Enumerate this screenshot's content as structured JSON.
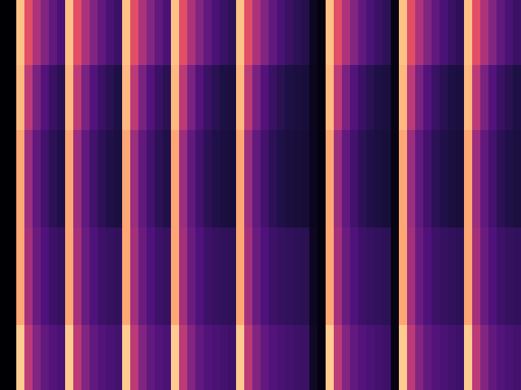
{
  "chart_data": {
    "type": "heatmap",
    "xlim": [
      0,
      64
    ],
    "ylim": [
      0,
      12
    ],
    "color_range": [
      0,
      1
    ],
    "tick_labels": false,
    "cells": [
      [
        0,
        0,
        0.88,
        0.62,
        0.48,
        0.38,
        0.3,
        0.24,
        0.88,
        0.62,
        0.48,
        0.38,
        0.3,
        0.24,
        0.2,
        0.88,
        0.62,
        0.48,
        0.38,
        0.3,
        0.24,
        0.88,
        0.62,
        0.48,
        0.38,
        0.3,
        0.24,
        0.2,
        0.17,
        0.88,
        0.62,
        0.48,
        0.38,
        0.3,
        0.24,
        0.2,
        0.17,
        0.15,
        0.06,
        0.02,
        0.88,
        0.62,
        0.48,
        0.38,
        0.3,
        0.24,
        0.2,
        0.17,
        0.03,
        0.88,
        0.62,
        0.48,
        0.38,
        0.3,
        0.24,
        0.2,
        0.17,
        0.88,
        0.62,
        0.48,
        0.38,
        0.3,
        0.24,
        0.2
      ],
      [
        0,
        0,
        0.88,
        0.62,
        0.48,
        0.38,
        0.3,
        0.24,
        0.88,
        0.62,
        0.48,
        0.38,
        0.3,
        0.24,
        0.2,
        0.88,
        0.62,
        0.48,
        0.38,
        0.3,
        0.24,
        0.88,
        0.62,
        0.48,
        0.38,
        0.3,
        0.24,
        0.2,
        0.17,
        0.88,
        0.62,
        0.48,
        0.38,
        0.3,
        0.24,
        0.2,
        0.17,
        0.15,
        0.06,
        0.02,
        0.88,
        0.62,
        0.48,
        0.38,
        0.3,
        0.24,
        0.2,
        0.17,
        0.03,
        0.88,
        0.62,
        0.48,
        0.38,
        0.3,
        0.24,
        0.2,
        0.17,
        0.88,
        0.62,
        0.48,
        0.38,
        0.3,
        0.24,
        0.2
      ],
      [
        0,
        0,
        0.86,
        0.52,
        0.36,
        0.26,
        0.2,
        0.16,
        0.86,
        0.52,
        0.36,
        0.26,
        0.2,
        0.16,
        0.13,
        0.86,
        0.52,
        0.36,
        0.26,
        0.2,
        0.16,
        0.86,
        0.52,
        0.36,
        0.26,
        0.2,
        0.16,
        0.13,
        0.12,
        0.86,
        0.52,
        0.36,
        0.26,
        0.2,
        0.16,
        0.13,
        0.12,
        0.11,
        0.05,
        0.02,
        0.86,
        0.52,
        0.36,
        0.26,
        0.2,
        0.16,
        0.13,
        0.12,
        0.03,
        0.86,
        0.52,
        0.36,
        0.26,
        0.2,
        0.16,
        0.13,
        0.12,
        0.86,
        0.52,
        0.36,
        0.26,
        0.2,
        0.16,
        0.13
      ],
      [
        0,
        0,
        0.86,
        0.52,
        0.36,
        0.26,
        0.2,
        0.16,
        0.86,
        0.52,
        0.36,
        0.26,
        0.2,
        0.16,
        0.13,
        0.86,
        0.52,
        0.36,
        0.26,
        0.2,
        0.16,
        0.86,
        0.52,
        0.36,
        0.26,
        0.2,
        0.16,
        0.13,
        0.12,
        0.86,
        0.52,
        0.36,
        0.26,
        0.2,
        0.16,
        0.13,
        0.12,
        0.11,
        0.05,
        0.02,
        0.86,
        0.52,
        0.36,
        0.26,
        0.2,
        0.16,
        0.13,
        0.12,
        0.03,
        0.86,
        0.52,
        0.36,
        0.26,
        0.2,
        0.16,
        0.13,
        0.12,
        0.86,
        0.52,
        0.36,
        0.26,
        0.2,
        0.16,
        0.13
      ],
      [
        0,
        0,
        0.82,
        0.44,
        0.3,
        0.22,
        0.17,
        0.14,
        0.82,
        0.44,
        0.3,
        0.22,
        0.17,
        0.14,
        0.12,
        0.82,
        0.44,
        0.3,
        0.22,
        0.17,
        0.14,
        0.82,
        0.44,
        0.3,
        0.22,
        0.17,
        0.14,
        0.12,
        0.11,
        0.82,
        0.44,
        0.3,
        0.22,
        0.17,
        0.14,
        0.12,
        0.11,
        0.1,
        0.05,
        0.02,
        0.82,
        0.44,
        0.3,
        0.22,
        0.17,
        0.14,
        0.12,
        0.11,
        0.03,
        0.82,
        0.44,
        0.3,
        0.22,
        0.17,
        0.14,
        0.12,
        0.11,
        0.82,
        0.44,
        0.3,
        0.22,
        0.17,
        0.14,
        0.12
      ],
      [
        0,
        0,
        0.82,
        0.44,
        0.3,
        0.22,
        0.17,
        0.14,
        0.82,
        0.44,
        0.3,
        0.22,
        0.17,
        0.14,
        0.12,
        0.82,
        0.44,
        0.3,
        0.22,
        0.17,
        0.14,
        0.82,
        0.44,
        0.3,
        0.22,
        0.17,
        0.14,
        0.12,
        0.11,
        0.82,
        0.44,
        0.3,
        0.22,
        0.17,
        0.14,
        0.12,
        0.11,
        0.1,
        0.05,
        0.02,
        0.82,
        0.44,
        0.3,
        0.22,
        0.17,
        0.14,
        0.12,
        0.11,
        0.03,
        0.82,
        0.44,
        0.3,
        0.22,
        0.17,
        0.14,
        0.12,
        0.11,
        0.82,
        0.44,
        0.3,
        0.22,
        0.17,
        0.14,
        0.12
      ],
      [
        0,
        0,
        0.82,
        0.44,
        0.3,
        0.22,
        0.17,
        0.14,
        0.82,
        0.44,
        0.3,
        0.22,
        0.17,
        0.14,
        0.12,
        0.82,
        0.44,
        0.3,
        0.22,
        0.17,
        0.14,
        0.82,
        0.44,
        0.3,
        0.22,
        0.17,
        0.14,
        0.12,
        0.11,
        0.82,
        0.44,
        0.3,
        0.22,
        0.17,
        0.14,
        0.12,
        0.11,
        0.1,
        0.05,
        0.02,
        0.82,
        0.44,
        0.3,
        0.22,
        0.17,
        0.14,
        0.12,
        0.11,
        0.03,
        0.82,
        0.44,
        0.3,
        0.22,
        0.17,
        0.14,
        0.12,
        0.11,
        0.82,
        0.44,
        0.3,
        0.22,
        0.17,
        0.14,
        0.12
      ],
      [
        0,
        0,
        0.82,
        0.46,
        0.32,
        0.25,
        0.21,
        0.19,
        0.82,
        0.46,
        0.32,
        0.25,
        0.21,
        0.19,
        0.18,
        0.82,
        0.46,
        0.32,
        0.25,
        0.21,
        0.19,
        0.82,
        0.46,
        0.32,
        0.25,
        0.21,
        0.19,
        0.18,
        0.17,
        0.82,
        0.46,
        0.32,
        0.25,
        0.21,
        0.19,
        0.18,
        0.17,
        0.16,
        0.06,
        0.02,
        0.82,
        0.46,
        0.32,
        0.25,
        0.21,
        0.19,
        0.18,
        0.17,
        0.03,
        0.82,
        0.46,
        0.32,
        0.25,
        0.21,
        0.19,
        0.18,
        0.17,
        0.82,
        0.46,
        0.32,
        0.25,
        0.21,
        0.19,
        0.18
      ],
      [
        0,
        0,
        0.82,
        0.46,
        0.32,
        0.25,
        0.21,
        0.19,
        0.82,
        0.46,
        0.32,
        0.25,
        0.21,
        0.19,
        0.18,
        0.82,
        0.46,
        0.32,
        0.25,
        0.21,
        0.19,
        0.82,
        0.46,
        0.32,
        0.25,
        0.21,
        0.19,
        0.18,
        0.17,
        0.82,
        0.46,
        0.32,
        0.25,
        0.21,
        0.19,
        0.18,
        0.17,
        0.16,
        0.06,
        0.02,
        0.82,
        0.46,
        0.32,
        0.25,
        0.21,
        0.19,
        0.18,
        0.17,
        0.03,
        0.82,
        0.46,
        0.32,
        0.25,
        0.21,
        0.19,
        0.18,
        0.17,
        0.82,
        0.46,
        0.32,
        0.25,
        0.21,
        0.19,
        0.18
      ],
      [
        0,
        0,
        0.82,
        0.46,
        0.32,
        0.25,
        0.21,
        0.19,
        0.82,
        0.46,
        0.32,
        0.25,
        0.21,
        0.19,
        0.18,
        0.82,
        0.46,
        0.32,
        0.25,
        0.21,
        0.19,
        0.82,
        0.46,
        0.32,
        0.25,
        0.21,
        0.19,
        0.18,
        0.17,
        0.82,
        0.46,
        0.32,
        0.25,
        0.21,
        0.19,
        0.18,
        0.17,
        0.16,
        0.06,
        0.02,
        0.82,
        0.46,
        0.32,
        0.25,
        0.21,
        0.19,
        0.18,
        0.17,
        0.03,
        0.82,
        0.46,
        0.32,
        0.25,
        0.21,
        0.19,
        0.18,
        0.17,
        0.82,
        0.46,
        0.32,
        0.25,
        0.21,
        0.19,
        0.18
      ],
      [
        0,
        0,
        0.9,
        0.52,
        0.38,
        0.3,
        0.26,
        0.24,
        0.9,
        0.52,
        0.38,
        0.3,
        0.26,
        0.24,
        0.22,
        0.9,
        0.52,
        0.38,
        0.3,
        0.26,
        0.24,
        0.9,
        0.52,
        0.38,
        0.3,
        0.26,
        0.24,
        0.22,
        0.21,
        0.9,
        0.52,
        0.38,
        0.3,
        0.26,
        0.24,
        0.22,
        0.21,
        0.2,
        0.07,
        0.02,
        0.9,
        0.52,
        0.38,
        0.3,
        0.26,
        0.24,
        0.22,
        0.21,
        0.03,
        0.9,
        0.52,
        0.38,
        0.3,
        0.26,
        0.24,
        0.22,
        0.21,
        0.9,
        0.52,
        0.38,
        0.3,
        0.26,
        0.24,
        0.22
      ],
      [
        0,
        0,
        0.9,
        0.52,
        0.38,
        0.3,
        0.26,
        0.24,
        0.9,
        0.52,
        0.38,
        0.3,
        0.26,
        0.24,
        0.22,
        0.9,
        0.52,
        0.38,
        0.3,
        0.26,
        0.24,
        0.9,
        0.52,
        0.38,
        0.3,
        0.26,
        0.24,
        0.22,
        0.21,
        0.9,
        0.52,
        0.38,
        0.3,
        0.26,
        0.24,
        0.22,
        0.21,
        0.2,
        0.07,
        0.02,
        0.9,
        0.52,
        0.38,
        0.3,
        0.26,
        0.24,
        0.22,
        0.21,
        0.03,
        0.9,
        0.52,
        0.38,
        0.3,
        0.26,
        0.24,
        0.22,
        0.21,
        0.9,
        0.52,
        0.38,
        0.3,
        0.26,
        0.24,
        0.22
      ]
    ]
  }
}
